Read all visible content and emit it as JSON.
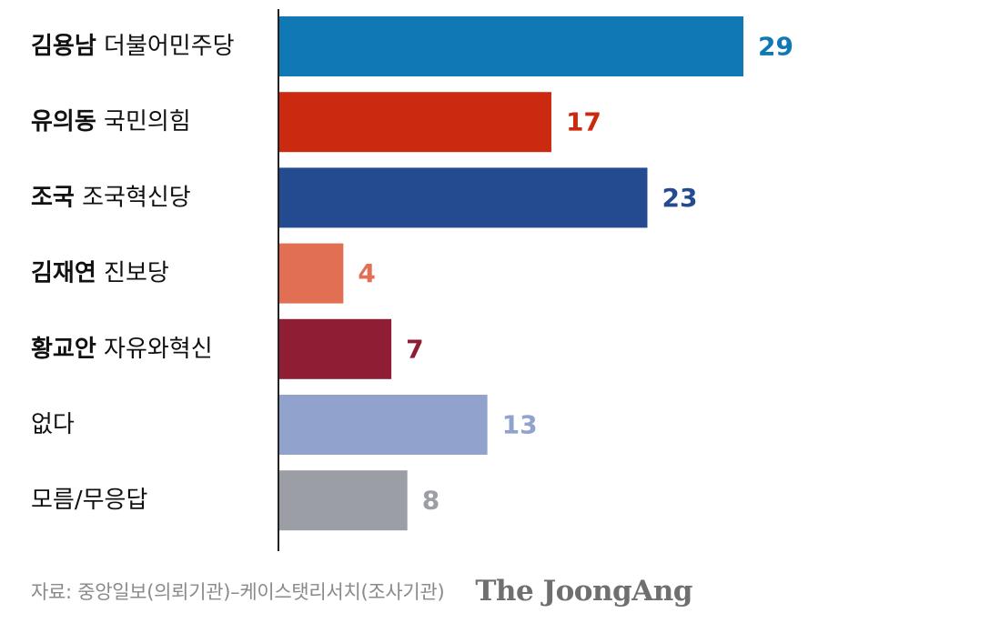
{
  "chart_data": {
    "type": "bar",
    "orientation": "horizontal",
    "categories": [
      {
        "name": "김용남",
        "party": "더불어민주당",
        "value": 29,
        "color": "#1079b5"
      },
      {
        "name": "유의동",
        "party": "국민의힘",
        "value": 17,
        "color": "#cc2a10"
      },
      {
        "name": "조국",
        "party": "조국혁신당",
        "value": 23,
        "color": "#244b8f"
      },
      {
        "name": "김재연",
        "party": "진보당",
        "value": 4,
        "color": "#e06f54"
      },
      {
        "name": "황교안",
        "party": "자유와혁신",
        "value": 7,
        "color": "#8f1d33"
      },
      {
        "name": "",
        "party": "없다",
        "value": 13,
        "color": "#91a2cc"
      },
      {
        "name": "",
        "party": "모름/무응답",
        "value": 8,
        "color": "#9c9ea6"
      }
    ],
    "title": "",
    "xlabel": "",
    "ylabel": "",
    "xlim": [
      0,
      29
    ],
    "grid": false,
    "legend": "none"
  },
  "footer": {
    "source": "자료: 중앙일보(의뢰기관)–케이스탯리서치(조사기관)",
    "logo": "The JoongAng"
  }
}
